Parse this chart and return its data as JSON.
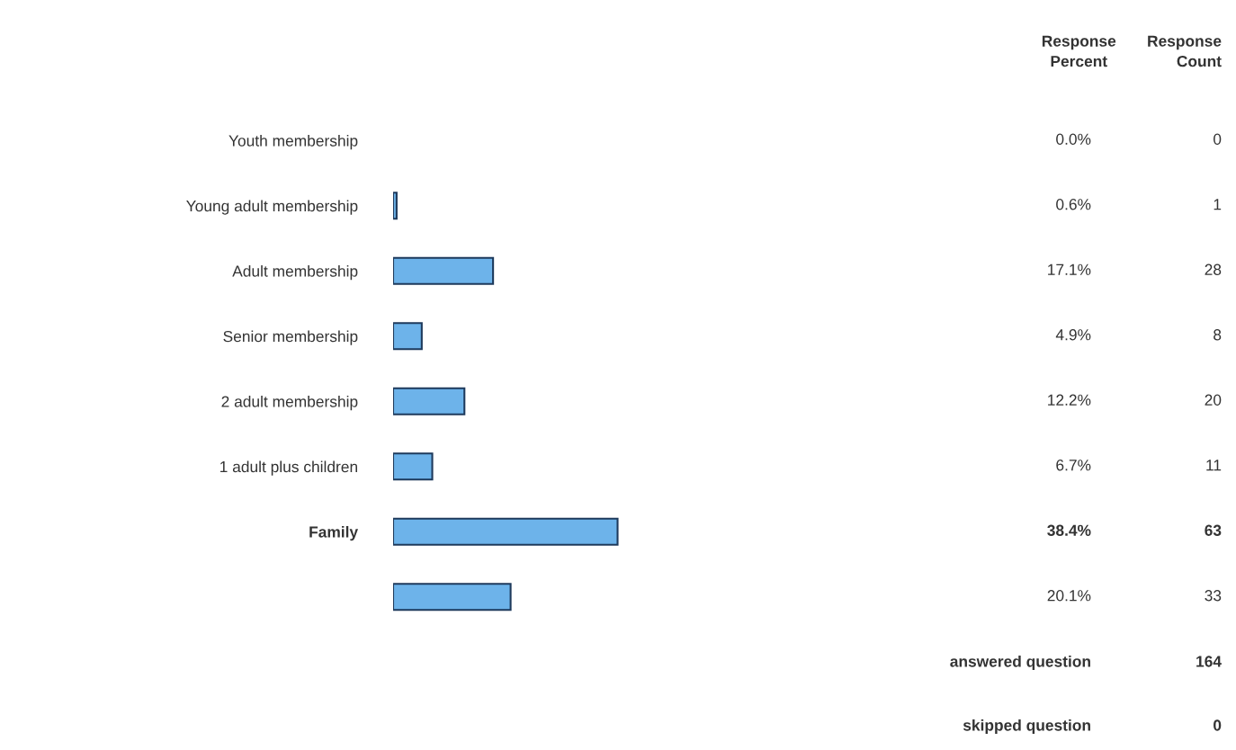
{
  "chart_data": {
    "type": "bar",
    "orientation": "horizontal",
    "categories": [
      "Youth membership",
      "Young adult membership",
      "Adult membership",
      "Senior membership",
      "2 adult membership",
      "1 adult plus children",
      "Family",
      null
    ],
    "series": [
      {
        "name": "Response Percent",
        "color": "#6db3ea",
        "values": [
          0.0,
          0.6,
          17.1,
          4.9,
          12.2,
          6.7,
          38.4,
          20.1
        ],
        "value_labels": [
          "0.0%",
          "0.6%",
          "17.1%",
          "4.9%",
          "12.2%",
          "6.7%",
          "38.4%",
          "20.1%"
        ]
      }
    ],
    "tick_labels": "y",
    "grid": false,
    "legend": false,
    "annotations": [
      "Response Count",
      "0",
      "1",
      "28",
      "8",
      "20",
      "11",
      "63",
      "33",
      "answered question",
      "164",
      "skipped question",
      "0"
    ]
  }
}
